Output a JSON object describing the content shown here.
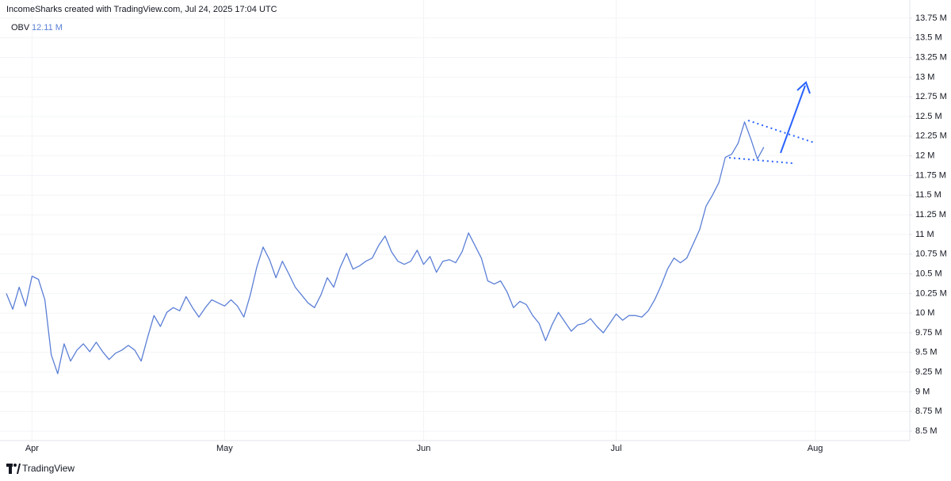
{
  "chart_data": {
    "type": "line",
    "title": "IncomeSharks created with TradingView.com, Jul 24, 2025 17:04 UTC",
    "watermark": "TradingView",
    "categories": [
      null,
      null,
      null,
      null,
      "Apr",
      null,
      null,
      null,
      null,
      null,
      null,
      null,
      null,
      null,
      null,
      null,
      null,
      null,
      null,
      null,
      null,
      null,
      null,
      null,
      null,
      null,
      null,
      null,
      null,
      null,
      null,
      null,
      null,
      null,
      "May",
      null,
      null,
      null,
      null,
      null,
      null,
      null,
      null,
      null,
      null,
      null,
      null,
      null,
      null,
      null,
      null,
      null,
      null,
      null,
      null,
      null,
      null,
      null,
      null,
      null,
      null,
      null,
      null,
      null,
      null,
      "Jun",
      null,
      null,
      null,
      null,
      null,
      null,
      null,
      null,
      null,
      null,
      null,
      null,
      null,
      null,
      null,
      null,
      null,
      null,
      null,
      null,
      null,
      null,
      null,
      null,
      null,
      null,
      null,
      null,
      null,
      "Jul",
      null,
      null,
      null,
      null,
      null,
      null,
      null,
      null,
      null,
      null,
      null,
      null,
      null,
      null,
      null,
      null,
      null,
      null,
      null,
      null,
      null,
      null,
      null,
      null,
      null,
      null,
      null,
      null,
      null,
      null,
      "Aug",
      null,
      null,
      null,
      null,
      null,
      null,
      null,
      null,
      null,
      null,
      null,
      null,
      null,
      null
    ],
    "series": [
      {
        "name": "OBV",
        "color": "#5b7fd6",
        "last_value_label": "12.11 M",
        "values": [
          10.25,
          10.05,
          10.33,
          10.09,
          10.47,
          10.43,
          10.17,
          9.47,
          9.23,
          9.61,
          9.39,
          9.53,
          9.61,
          9.51,
          9.63,
          9.51,
          9.41,
          9.49,
          9.53,
          9.59,
          9.53,
          9.39,
          9.69,
          9.97,
          9.83,
          10.01,
          10.07,
          10.03,
          10.21,
          10.07,
          9.95,
          10.07,
          10.17,
          10.13,
          10.09,
          10.17,
          10.09,
          9.95,
          10.23,
          10.58,
          10.84,
          10.68,
          10.45,
          10.66,
          10.5,
          10.33,
          10.23,
          10.13,
          10.07,
          10.23,
          10.45,
          10.33,
          10.58,
          10.76,
          10.56,
          10.6,
          10.66,
          10.7,
          10.86,
          10.98,
          10.78,
          10.66,
          10.62,
          10.66,
          10.8,
          10.62,
          10.72,
          10.52,
          10.66,
          10.68,
          10.64,
          10.78,
          11.02,
          10.86,
          10.7,
          10.41,
          10.37,
          10.41,
          10.27,
          10.07,
          10.15,
          10.11,
          9.97,
          9.87,
          9.65,
          9.85,
          10.01,
          9.89,
          9.77,
          9.85,
          9.87,
          9.93,
          9.83,
          9.75,
          9.87,
          9.99,
          9.91,
          9.97,
          9.97,
          9.95,
          10.03,
          10.17,
          10.35,
          10.56,
          10.7,
          10.64,
          10.7,
          10.88,
          11.06,
          11.36,
          11.5,
          11.66,
          11.98,
          12.02,
          12.16,
          12.43,
          12.21,
          11.96,
          12.11,
          null,
          null,
          null,
          null,
          null,
          null,
          null,
          null,
          null,
          null,
          null,
          null,
          null,
          null,
          null,
          null,
          null,
          null,
          null,
          null,
          null,
          null
        ]
      }
    ],
    "ylim": [
      8.39,
      13.88
    ],
    "yticks": [
      {
        "value": 8.5,
        "label": "8.5 M"
      },
      {
        "value": 8.75,
        "label": "8.75 M"
      },
      {
        "value": 9,
        "label": "9 M"
      },
      {
        "value": 9.25,
        "label": "9.25 M"
      },
      {
        "value": 9.5,
        "label": "9.5 M"
      },
      {
        "value": 9.75,
        "label": "9.75 M"
      },
      {
        "value": 10,
        "label": "10 M"
      },
      {
        "value": 10.25,
        "label": "10.25 M"
      },
      {
        "value": 10.5,
        "label": "10.5 M"
      },
      {
        "value": 10.75,
        "label": "10.75 M"
      },
      {
        "value": 11,
        "label": "11 M"
      },
      {
        "value": 11.25,
        "label": "11.25 M"
      },
      {
        "value": 11.5,
        "label": "11.5 M"
      },
      {
        "value": 11.75,
        "label": "11.75 M"
      },
      {
        "value": 12,
        "label": "12 M"
      },
      {
        "value": 12.25,
        "label": "12.25 M"
      },
      {
        "value": 12.5,
        "label": "12.5 M"
      },
      {
        "value": 12.75,
        "label": "12.75 M"
      },
      {
        "value": 13,
        "label": "13 M"
      },
      {
        "value": 13.25,
        "label": "13.25 M"
      },
      {
        "value": 13.5,
        "label": "13.5 M"
      },
      {
        "value": 13.75,
        "label": "13.75 M"
      }
    ],
    "grid": true
  }
}
